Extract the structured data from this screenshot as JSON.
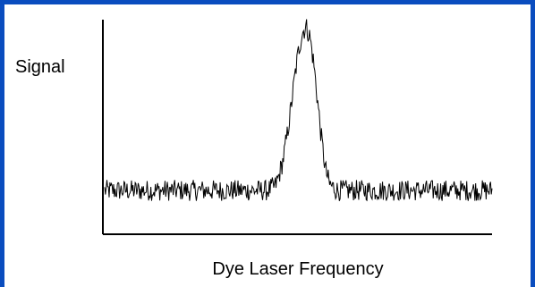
{
  "frame": {
    "border_color": "#0a4dbf",
    "background": "#ffffff"
  },
  "chart_data": {
    "type": "line",
    "title": "",
    "xlabel": "Dye Laser Frequency",
    "ylabel": "Signal",
    "grid": false,
    "legend": "none",
    "series": [
      {
        "color": "#000000",
        "description_hint": "noisy baseline with a single resonance peak",
        "x": [
          0,
          2,
          4,
          6,
          8,
          10,
          12,
          14,
          16,
          18,
          20,
          22,
          24,
          26,
          28,
          30,
          32,
          34,
          36,
          38,
          40,
          42,
          44,
          45,
          46,
          47,
          48,
          49,
          50,
          51,
          52,
          53,
          54,
          55,
          56,
          57,
          58,
          60,
          62,
          64,
          66,
          68,
          70,
          72,
          74,
          76,
          78,
          80,
          82,
          84,
          86,
          88,
          90,
          92,
          94,
          96,
          98,
          100
        ],
        "y": [
          0.2,
          0.2,
          0.2,
          0.2,
          0.2,
          0.2,
          0.2,
          0.2,
          0.2,
          0.2,
          0.2,
          0.2,
          0.2,
          0.2,
          0.2,
          0.2,
          0.2,
          0.2,
          0.2,
          0.2,
          0.2,
          0.2,
          0.22,
          0.27,
          0.34,
          0.45,
          0.58,
          0.73,
          0.86,
          0.95,
          0.98,
          0.93,
          0.8,
          0.62,
          0.44,
          0.3,
          0.23,
          0.2,
          0.2,
          0.2,
          0.2,
          0.2,
          0.2,
          0.2,
          0.2,
          0.2,
          0.2,
          0.2,
          0.2,
          0.2,
          0.2,
          0.2,
          0.2,
          0.2,
          0.2,
          0.2,
          0.2,
          0.2
        ]
      }
    ],
    "noise_amplitude": 0.05,
    "xlim": [
      0,
      100
    ],
    "ylim": [
      0,
      1
    ]
  }
}
